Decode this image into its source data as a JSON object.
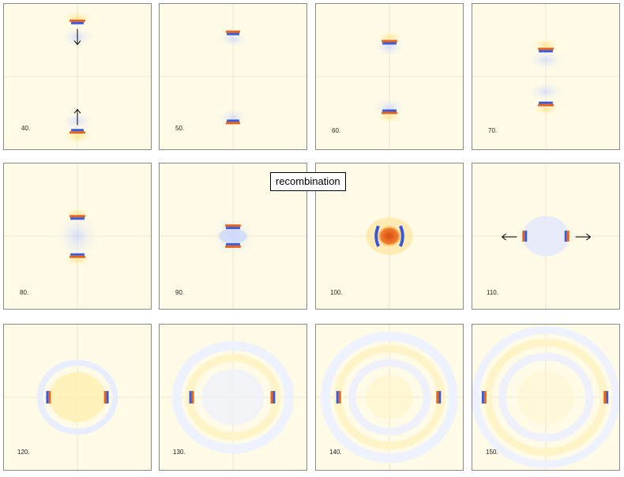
{
  "panels": [
    {
      "label": "40."
    },
    {
      "label": "50."
    },
    {
      "label": "60."
    },
    {
      "label": "70."
    },
    {
      "label": "80."
    },
    {
      "label": "90."
    },
    {
      "label": "100."
    },
    {
      "label": "110."
    },
    {
      "label": "120."
    },
    {
      "label": "130."
    },
    {
      "label": "140."
    },
    {
      "label": "150."
    }
  ],
  "callout": "recombination",
  "colors": {
    "background": "#fffbe6",
    "positive": "#e8641a",
    "positive_core": "#ffb000",
    "negative": "#3a5ad8",
    "faint_blue": "#e6ecff"
  }
}
